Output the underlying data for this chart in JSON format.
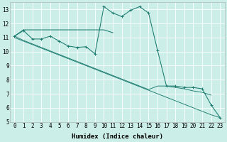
{
  "xlabel": "Humidex (Indice chaleur)",
  "bg_color": "#cceee8",
  "grid_color": "#ffffff",
  "line_color": "#1a7a6e",
  "x_values": [
    0,
    1,
    2,
    3,
    4,
    5,
    6,
    7,
    8,
    9,
    10,
    11,
    12,
    13,
    14,
    15,
    16,
    17,
    18,
    19,
    20,
    21,
    22,
    23
  ],
  "line_jagged": [
    11.1,
    11.5,
    10.9,
    10.9,
    11.1,
    10.75,
    10.4,
    10.3,
    10.35,
    9.85,
    13.2,
    12.75,
    12.5,
    12.95,
    13.2,
    12.75,
    10.1,
    7.55,
    7.55,
    7.45,
    7.45,
    7.35,
    6.2,
    5.3
  ],
  "line_flat": [
    11.1,
    11.55,
    11.55,
    11.55,
    11.55,
    11.55,
    11.55,
    11.55,
    11.55,
    11.55,
    11.55,
    11.35,
    null,
    null,
    null,
    null,
    null,
    null,
    null,
    null,
    null,
    null,
    null,
    null
  ],
  "line_trend1": [
    11.1,
    10.8,
    10.55,
    10.3,
    10.05,
    9.8,
    9.55,
    9.3,
    9.05,
    8.8,
    8.55,
    8.3,
    8.05,
    7.8,
    7.55,
    7.3,
    7.55,
    7.55,
    7.45,
    7.35,
    7.2,
    7.1,
    6.9,
    null
  ],
  "line_trend2": [
    11.0,
    10.75,
    10.5,
    10.25,
    10.0,
    9.75,
    9.5,
    9.25,
    9.0,
    8.75,
    8.5,
    8.25,
    8.0,
    7.75,
    7.5,
    7.25,
    7.0,
    6.75,
    6.5,
    6.25,
    6.0,
    5.75,
    5.5,
    5.3
  ],
  "ylim": [
    5,
    13.5
  ],
  "xlim": [
    -0.5,
    23.5
  ],
  "yticks": [
    5,
    6,
    7,
    8,
    9,
    10,
    11,
    12,
    13
  ],
  "xticks": [
    0,
    1,
    2,
    3,
    4,
    5,
    6,
    7,
    8,
    9,
    10,
    11,
    12,
    13,
    14,
    15,
    16,
    17,
    18,
    19,
    20,
    21,
    22,
    23
  ],
  "tick_fontsize": 5.5,
  "xlabel_fontsize": 6.5
}
